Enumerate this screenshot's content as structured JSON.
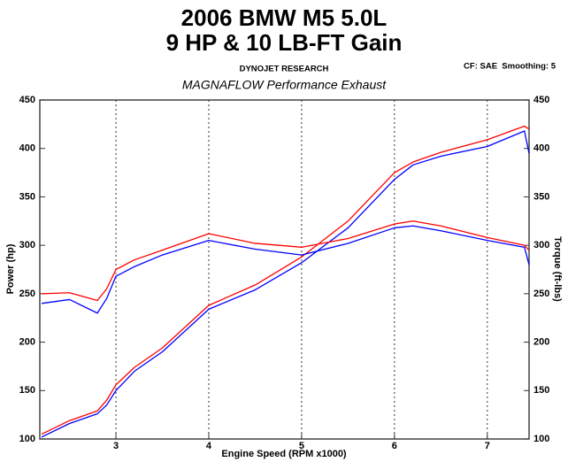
{
  "chart_data": {
    "type": "line",
    "title": "2006 BMW M5 5.0L",
    "subtitle": "9 HP & 10 LB-FT Gain",
    "annotations": [
      "DYNOJET RESEARCH",
      "CF: SAE  Smoothing: 5",
      "MAGNAFLOW Performance Exhaust"
    ],
    "xlabel": "Engine Speed (RPM x1000)",
    "ylabel": "Power (hp)",
    "y2label": "Torque (ft-lbs)",
    "x": [
      2.2,
      2.5,
      2.8,
      2.9,
      3.0,
      3.2,
      3.5,
      4.0,
      4.5,
      5.0,
      5.5,
      6.0,
      6.2,
      6.5,
      7.0,
      7.4,
      7.45
    ],
    "series": [
      {
        "color": "#0000ff",
        "axis": "y",
        "values": [
          102,
          116,
          126,
          135,
          150,
          170,
          190,
          234,
          254,
          282,
          318,
          368,
          383,
          392,
          402,
          418,
          395
        ]
      },
      {
        "color": "#ff0000",
        "axis": "y",
        "values": [
          105,
          119,
          129,
          140,
          156,
          174,
          194,
          238,
          259,
          288,
          325,
          375,
          386,
          396,
          409,
          423,
          420
        ]
      },
      {
        "color": "#0000ff",
        "axis": "y2",
        "values": [
          240,
          244,
          230,
          245,
          268,
          278,
          290,
          305,
          296,
          290,
          302,
          318,
          320,
          315,
          305,
          298,
          280
        ]
      },
      {
        "color": "#ff0000",
        "axis": "y2",
        "values": [
          250,
          251,
          243,
          255,
          275,
          285,
          295,
          312,
          302,
          298,
          307,
          322,
          325,
          320,
          308,
          300,
          295
        ]
      }
    ],
    "xlim": [
      2.18,
      7.45
    ],
    "xticks": [
      3,
      4,
      5,
      6,
      7
    ],
    "ylim": [
      100,
      450
    ],
    "yticks": [
      100,
      150,
      200,
      250,
      300,
      350,
      400,
      450
    ],
    "y2lim": [
      100,
      450
    ],
    "y2ticks": [
      100,
      150,
      200,
      250,
      300,
      350,
      400,
      450
    ],
    "xgrid": true
  }
}
